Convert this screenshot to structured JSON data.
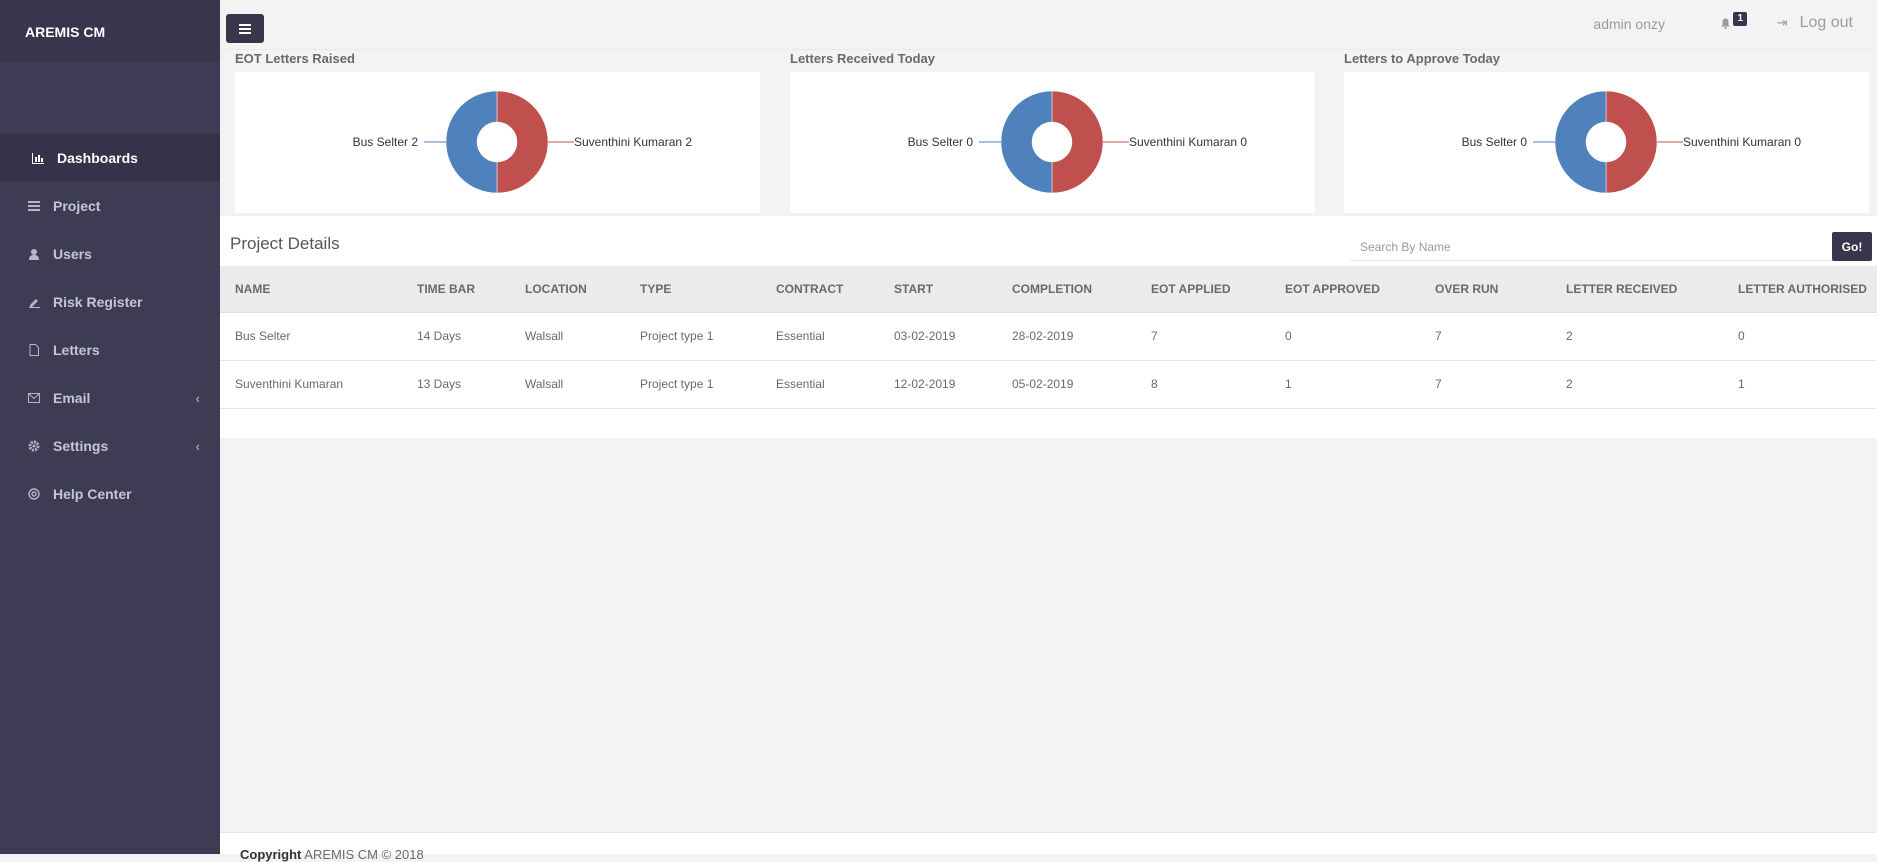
{
  "brand": "AREMIS CM",
  "sidebar": {
    "items": [
      {
        "label": "Dashboards",
        "icon": "bar-chart-icon",
        "active": true
      },
      {
        "label": "Project",
        "icon": "list-icon"
      },
      {
        "label": "Users",
        "icon": "user-icon"
      },
      {
        "label": "Risk Register",
        "icon": "pencil-icon"
      },
      {
        "label": "Letters",
        "icon": "file-icon"
      },
      {
        "label": "Email",
        "icon": "envelope-icon",
        "has_submenu": true
      },
      {
        "label": "Settings",
        "icon": "gear-icon",
        "has_submenu": true
      },
      {
        "label": "Help Center",
        "icon": "globe-icon"
      }
    ]
  },
  "topbar": {
    "user": "admin onzy",
    "notifications": "1",
    "logout": "Log out"
  },
  "charts": [
    {
      "title": "EOT Letters Raised",
      "left_label": "Bus Selter",
      "left_value": "2",
      "right_label": "Suventhini Kumaran",
      "right_value": "2"
    },
    {
      "title": "Letters Received Today",
      "left_label": "Bus Selter",
      "left_value": "0",
      "right_label": "Suventhini Kumaran",
      "right_value": "0"
    },
    {
      "title": "Letters to Approve Today",
      "left_label": "Bus Selter",
      "left_value": "0",
      "right_label": "Suventhini Kumaran",
      "right_value": "0"
    }
  ],
  "chart_data": [
    {
      "type": "pie",
      "title": "EOT Letters Raised",
      "categories": [
        "Bus Selter",
        "Suventhini Kumaran"
      ],
      "values": [
        2,
        2
      ],
      "colors": [
        "#4f81bd",
        "#c0504d"
      ]
    },
    {
      "type": "pie",
      "title": "Letters Received Today",
      "categories": [
        "Bus Selter",
        "Suventhini Kumaran"
      ],
      "values": [
        0,
        0
      ],
      "colors": [
        "#4f81bd",
        "#c0504d"
      ]
    },
    {
      "type": "pie",
      "title": "Letters to Approve Today",
      "categories": [
        "Bus Selter",
        "Suventhini Kumaran"
      ],
      "values": [
        0,
        0
      ],
      "colors": [
        "#4f81bd",
        "#c0504d"
      ]
    }
  ],
  "details": {
    "title": "Project Details",
    "search_placeholder": "Search By Name",
    "go_label": "Go!",
    "columns": [
      "NAME",
      "TIME BAR",
      "LOCATION",
      "TYPE",
      "CONTRACT",
      "START",
      "COMPLETION",
      "EOT APPLIED",
      "EOT APPROVED",
      "OVER RUN",
      "LETTER RECEIVED",
      "LETTER AUTHORISED"
    ],
    "rows": [
      [
        "Bus Selter",
        "14 Days",
        "Walsall",
        "Project type 1",
        "Essential",
        "03-02-2019",
        "28-02-2019",
        "7",
        "0",
        "7",
        "2",
        "0"
      ],
      [
        "Suventhini Kumaran",
        "13 Days",
        "Walsall",
        "Project type 1",
        "Essential",
        "12-02-2019",
        "05-02-2019",
        "8",
        "1",
        "7",
        "2",
        "1"
      ]
    ]
  },
  "footer": {
    "bold": "Copyright",
    "text": " AREMIS CM © 2018"
  },
  "colors": {
    "sidebar": "#3d3c54",
    "accent": "#37364d",
    "series_blue": "#4f81bd",
    "series_red": "#c0504d"
  }
}
